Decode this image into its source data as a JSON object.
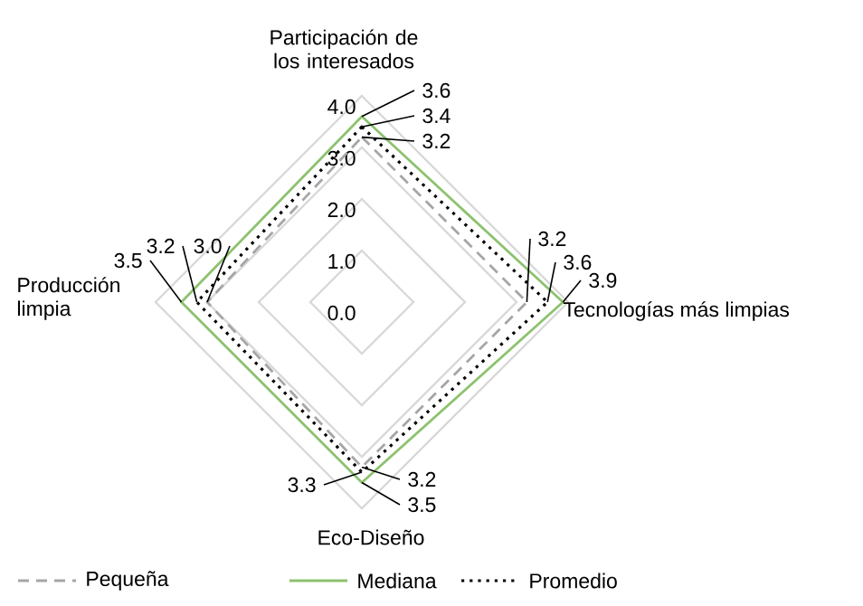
{
  "chart_data": {
    "type": "radar",
    "categories": [
      "Participación de los interesados",
      "Tecnologías más limpias",
      "Eco-Diseño",
      "Producción limpia"
    ],
    "series": [
      {
        "name": "Pequeña",
        "color": "#a6a6a6",
        "line_style": "dashed",
        "values": [
          3.2,
          3.2,
          3.2,
          3.0
        ],
        "value_labels": [
          "3.2",
          "3.2",
          "3.2",
          "3.0"
        ]
      },
      {
        "name": "Mediana",
        "color": "#8dc26f",
        "line_style": "solid",
        "values": [
          3.6,
          3.9,
          3.5,
          3.5
        ],
        "value_labels": [
          "3.6",
          "3.9",
          "3.5",
          "3.5"
        ]
      },
      {
        "name": "Promedio",
        "color": "#000000",
        "line_style": "dotted",
        "values": [
          3.4,
          3.6,
          3.3,
          3.2
        ],
        "value_labels": [
          "3.4",
          "3.6",
          "3.3",
          "3.2"
        ]
      }
    ],
    "ylim": [
      0,
      4
    ],
    "yticks": [
      {
        "value": 0,
        "label": "0.0"
      },
      {
        "value": 1,
        "label": "1.0"
      },
      {
        "value": 2,
        "label": "2.0"
      },
      {
        "value": 3,
        "label": "3.0"
      },
      {
        "value": 4,
        "label": "4.0"
      }
    ],
    "grid": true,
    "legend": "bottom"
  }
}
